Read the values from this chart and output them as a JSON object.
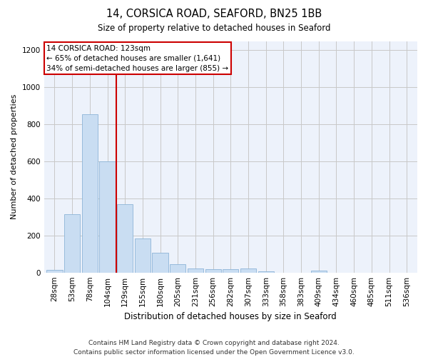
{
  "title1": "14, CORSICA ROAD, SEAFORD, BN25 1BB",
  "title2": "Size of property relative to detached houses in Seaford",
  "xlabel": "Distribution of detached houses by size in Seaford",
  "ylabel": "Number of detached properties",
  "categories": [
    "28sqm",
    "53sqm",
    "78sqm",
    "104sqm",
    "129sqm",
    "155sqm",
    "180sqm",
    "205sqm",
    "231sqm",
    "256sqm",
    "282sqm",
    "307sqm",
    "333sqm",
    "358sqm",
    "383sqm",
    "409sqm",
    "434sqm",
    "460sqm",
    "485sqm",
    "511sqm",
    "536sqm"
  ],
  "values": [
    15,
    315,
    855,
    600,
    370,
    185,
    105,
    45,
    20,
    18,
    18,
    20,
    8,
    0,
    0,
    12,
    0,
    0,
    0,
    0,
    0
  ],
  "bar_color": "#c9ddf2",
  "bar_edge_color": "#8db4d8",
  "vline_x_idx": 3.5,
  "vline_color": "#cc0000",
  "annotation_line1": "14 CORSICA ROAD: 123sqm",
  "annotation_line2": "← 65% of detached houses are smaller (1,641)",
  "annotation_line3": "34% of semi-detached houses are larger (855) →",
  "annotation_box_color": "#cc0000",
  "ylim": [
    0,
    1250
  ],
  "yticks": [
    0,
    200,
    400,
    600,
    800,
    1000,
    1200
  ],
  "footer": "Contains HM Land Registry data © Crown copyright and database right 2024.\nContains public sector information licensed under the Open Government Licence v3.0.",
  "background_color": "#ffffff",
  "plot_bg_color": "#edf2fb",
  "grid_color": "#c8c8c8"
}
